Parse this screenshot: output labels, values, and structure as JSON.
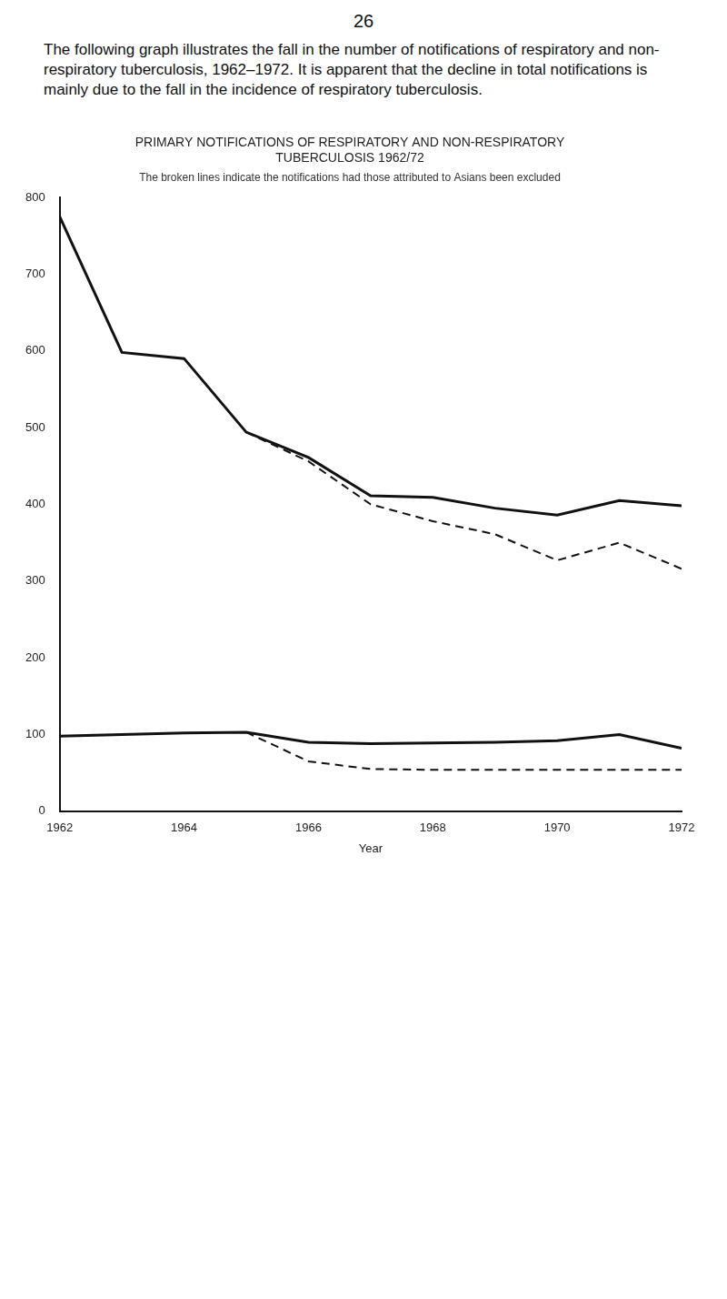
{
  "page_number": "26",
  "text": "The following graph illustrates the fall in the number of notifications of respiratory and non-respiratory tuberculosis, 1962–1972. It is apparent that the decline in total notifications is mainly due to the fall in the incidence of respiratory tuberculosis.",
  "chart_data": {
    "type": "line",
    "title": "PRIMARY NOTIFICATIONS OF RESPIRATORY AND NON-RESPIRATORY TUBERCULOSIS 1962/72",
    "subtitle": "The broken lines indicate the notifications had those attributed to Asians been excluded",
    "x_label": "Year",
    "x": [
      1962,
      1963,
      1964,
      1965,
      1966,
      1967,
      1968,
      1969,
      1970,
      1971,
      1972
    ],
    "series": [
      {
        "color": "#111111",
        "line_style": "solid",
        "values": [
          775,
          598,
          590,
          494,
          461,
          411,
          409,
          395,
          386,
          405,
          398
        ]
      },
      {
        "color": "#111111",
        "line_style": "dashed",
        "values": [
          null,
          null,
          null,
          494,
          456,
          400,
          378,
          361,
          327,
          350,
          316
        ]
      },
      {
        "color": "#111111",
        "line_style": "solid",
        "values": [
          98,
          100,
          102,
          103,
          90,
          88,
          89,
          90,
          92,
          100,
          82
        ]
      },
      {
        "color": "#111111",
        "line_style": "dashed",
        "values": [
          null,
          null,
          null,
          103,
          65,
          55,
          54,
          54,
          54,
          54,
          54
        ]
      }
    ],
    "xlim": [
      1962,
      1972
    ],
    "xticks": [
      1962,
      1964,
      1966,
      1968,
      1970,
      1972
    ],
    "ylim": [
      0,
      800
    ],
    "yticks": [
      0,
      100,
      200,
      300,
      400,
      500,
      600,
      700,
      800
    ],
    "grid": false
  }
}
